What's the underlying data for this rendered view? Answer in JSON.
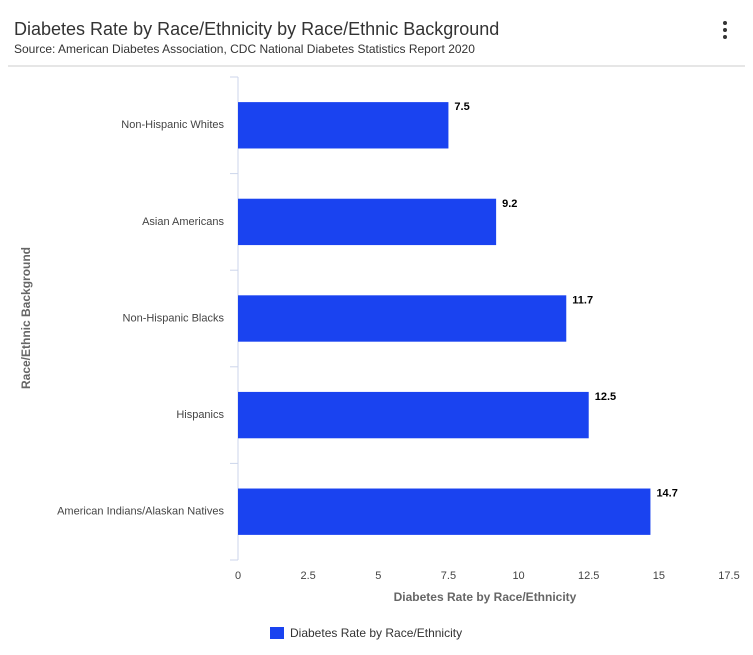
{
  "chart_data": {
    "type": "bar",
    "orientation": "horizontal",
    "title": "Diabetes Rate by Race/Ethnicity by Race/Ethnic Background",
    "subtitle": "Source: American Diabetes Association, CDC National Diabetes Statistics Report 2020",
    "x_label": "Diabetes Rate by Race/Ethnicity",
    "y_label": "Race/Ethnic Background",
    "categories": [
      "Non-Hispanic Whites",
      "Asian Americans",
      "Non-Hispanic Blacks",
      "Hispanics",
      "American Indians/Alaskan Natives"
    ],
    "series": [
      {
        "name": "Diabetes Rate by Race/Ethnicity",
        "color": "#1a43f0",
        "values": [
          7.5,
          9.2,
          11.7,
          12.5,
          14.7
        ]
      }
    ],
    "xlim": [
      0,
      17.5
    ],
    "xticks": [
      0,
      2.5,
      5,
      7.5,
      10,
      12.5,
      15,
      17.5
    ],
    "grid": false,
    "legend": "bottom"
  }
}
